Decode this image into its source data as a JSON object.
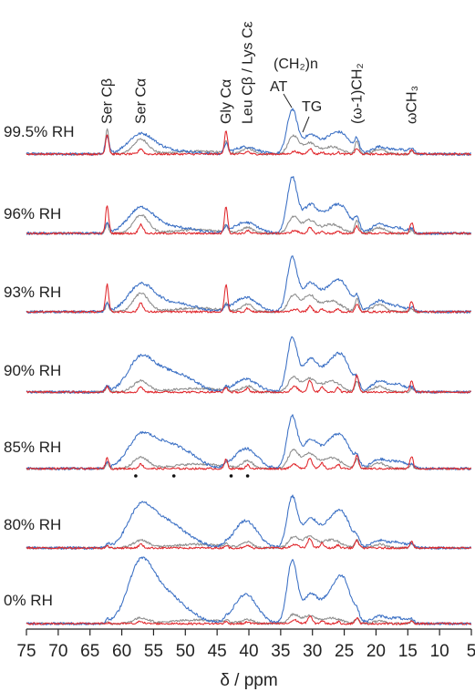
{
  "chart_data": {
    "type": "line",
    "title": "",
    "xlabel": "δ / ppm",
    "ylabel": "",
    "xlim": [
      75,
      5
    ],
    "x_reversed": true,
    "x_ticks": [
      75,
      70,
      65,
      60,
      55,
      50,
      45,
      40,
      35,
      30,
      25,
      20,
      15,
      10,
      5
    ],
    "grid": false,
    "legend": "none",
    "colors": {
      "blue": "#3a6fc4",
      "gray": "#8c8c8c",
      "red": "#e0262b",
      "axis": "#222222",
      "dot": "#111111"
    },
    "peak_labels": [
      {
        "ppm": 62.3,
        "text": "Ser Cβ"
      },
      {
        "ppm": 57.0,
        "text": "Ser Cα"
      },
      {
        "ppm": 43.6,
        "text": "Gly Cα"
      },
      {
        "ppm": 40.2,
        "text": "Leu Cβ / Lys Cε"
      },
      {
        "ppm": 23.0,
        "text": "(ω-1)CH₂"
      },
      {
        "ppm": 14.4,
        "text": "ωCH₃"
      }
    ],
    "group_label": {
      "text": "(CH₂)n"
    },
    "conformer_labels": [
      {
        "ppm": 33.2,
        "text": "AT"
      },
      {
        "ppm": 30.4,
        "text": "TG"
      }
    ],
    "series": [
      {
        "name": "99.5% RH"
      },
      {
        "name": "96% RH"
      },
      {
        "name": "93% RH"
      },
      {
        "name": "90% RH"
      },
      {
        "name": "85% RH",
        "dots_ppm": [
          57.8,
          51.8,
          42.8,
          40.2
        ]
      },
      {
        "name": "80% RH"
      },
      {
        "name": "0% RH"
      }
    ]
  }
}
